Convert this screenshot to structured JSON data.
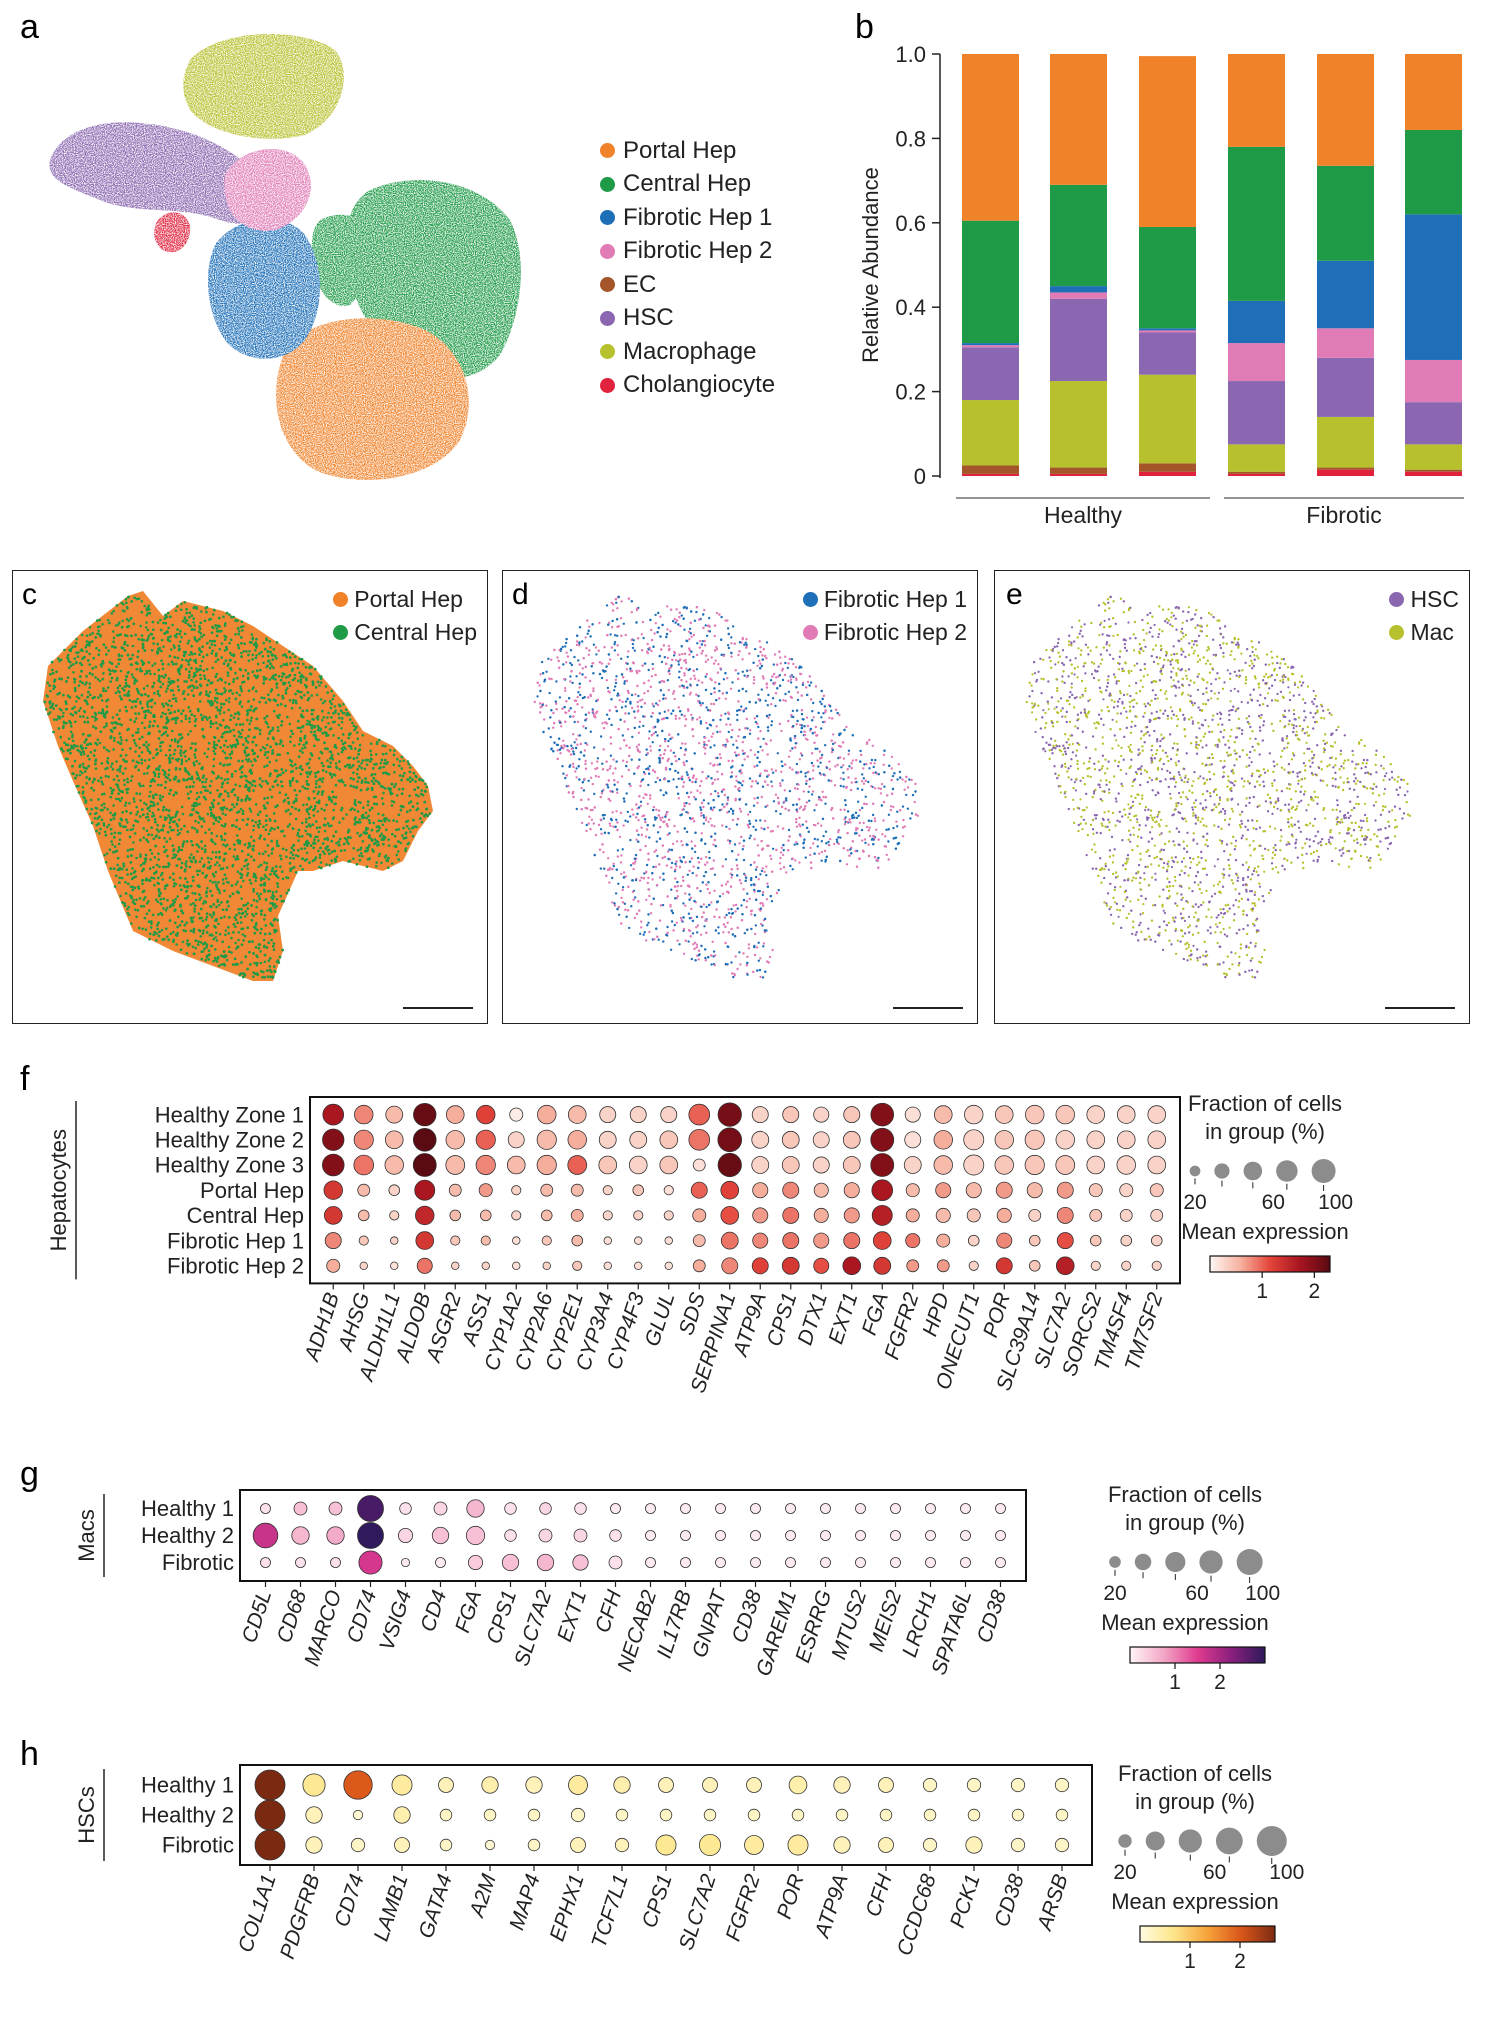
{
  "panels": {
    "a": {
      "letter": "a"
    },
    "b": {
      "letter": "b"
    },
    "c": {
      "letter": "c"
    },
    "d": {
      "letter": "d"
    },
    "e": {
      "letter": "e"
    },
    "f": {
      "letter": "f"
    },
    "g": {
      "letter": "g"
    },
    "h": {
      "letter": "h"
    }
  },
  "colors": {
    "portal_hep": "#f0822a",
    "central_hep": "#1f9a46",
    "fibrotic_hep_1": "#1f6fb8",
    "fibrotic_hep_2": "#e07bb6",
    "ec": "#a4552a",
    "hsc": "#8a67b0",
    "macrophage": "#b7c02d",
    "cholangiocyte": "#e0223c"
  },
  "umap_legend": [
    {
      "label": "Portal Hep",
      "color": "#f0822a"
    },
    {
      "label": "Central Hep",
      "color": "#1f9a46"
    },
    {
      "label": "Fibrotic Hep 1",
      "color": "#1f6fb8"
    },
    {
      "label": "Fibrotic Hep 2",
      "color": "#e07bb6"
    },
    {
      "label": "EC",
      "color": "#a4552a"
    },
    {
      "label": "HSC",
      "color": "#8a67b0"
    },
    {
      "label": "Macrophage",
      "color": "#b7c02d"
    },
    {
      "label": "Cholangiocyte",
      "color": "#e0223c"
    }
  ],
  "spatial_legends": {
    "c": [
      {
        "label": "Portal Hep",
        "color": "#f0822a"
      },
      {
        "label": "Central Hep",
        "color": "#1f9a46"
      }
    ],
    "d": [
      {
        "label": "Fibrotic Hep 1",
        "color": "#1f6fb8"
      },
      {
        "label": "Fibrotic Hep 2",
        "color": "#e07bb6"
      }
    ],
    "e": [
      {
        "label": "HSC",
        "color": "#8a67b0"
      },
      {
        "label": "Mac",
        "color": "#b7c02d"
      }
    ]
  },
  "chart_data": [
    {
      "type": "bar",
      "stacked": true,
      "panel": "b",
      "ylabel": "Relative Abundance",
      "ylim": [
        0,
        1.0
      ],
      "yticks": [
        "0",
        "0.2",
        "0.4",
        "0.6",
        "0.8",
        "1.0"
      ],
      "groups": [
        {
          "label": "Healthy",
          "bars": [
            0,
            1,
            2
          ]
        },
        {
          "label": "Fibrotic",
          "bars": [
            3,
            4,
            5
          ]
        }
      ],
      "series": [
        {
          "key": "cholangiocyte",
          "color": "#e0223c",
          "values": [
            0.005,
            0.005,
            0.01,
            0.005,
            0.015,
            0.01
          ]
        },
        {
          "key": "ec",
          "color": "#a4552a",
          "values": [
            0.02,
            0.015,
            0.02,
            0.005,
            0.005,
            0.005
          ]
        },
        {
          "key": "macrophage",
          "color": "#b7c02d",
          "values": [
            0.155,
            0.205,
            0.21,
            0.065,
            0.12,
            0.06
          ]
        },
        {
          "key": "hsc",
          "color": "#8a67b0",
          "values": [
            0.125,
            0.195,
            0.1,
            0.15,
            0.14,
            0.1
          ]
        },
        {
          "key": "fibrotic_hep_2",
          "color": "#e07bb6",
          "values": [
            0.005,
            0.015,
            0.005,
            0.09,
            0.07,
            0.1
          ]
        },
        {
          "key": "fibrotic_hep_1",
          "color": "#1f6fb8",
          "values": [
            0.005,
            0.015,
            0.005,
            0.1,
            0.16,
            0.345
          ]
        },
        {
          "key": "central_hep",
          "color": "#1f9a46",
          "values": [
            0.29,
            0.24,
            0.24,
            0.365,
            0.225,
            0.2
          ]
        },
        {
          "key": "portal_hep",
          "color": "#f0822a",
          "values": [
            0.395,
            0.31,
            0.405,
            0.22,
            0.265,
            0.18
          ]
        }
      ]
    },
    {
      "type": "scatter",
      "panel": "f",
      "rows": [
        "Healthy Zone 1",
        "Healthy Zone 2",
        "Healthy Zone 3",
        "Portal Hep",
        "Central Hep",
        "Fibrotic Hep 1",
        "Fibrotic Hep 2"
      ],
      "row_group_label": "Hepatocytes",
      "genes": [
        "ADH1B",
        "AHSG",
        "ALDH1L1",
        "ALDOB",
        "ASGR2",
        "ASS1",
        "CYP1A2",
        "CYP2A6",
        "CYP2E1",
        "CYP3A4",
        "CYP4F3",
        "GLUL",
        "SDS",
        "SERPINA1",
        "ATP9A",
        "CPS1",
        "DTX1",
        "EXT1",
        "FGA",
        "FGFR2",
        "HPD",
        "ONECUT1",
        "POR",
        "SLC39A14",
        "SLC7A2",
        "SORCS2",
        "TM4SF4",
        "TM7SF2"
      ],
      "size": [
        [
          75,
          60,
          50,
          88,
          55,
          60,
          30,
          60,
          55,
          45,
          45,
          45,
          75,
          95,
          45,
          45,
          40,
          45,
          90,
          40,
          55,
          60,
          55,
          60,
          60,
          55,
          55,
          55
        ],
        [
          80,
          65,
          55,
          90,
          60,
          65,
          45,
          65,
          60,
          50,
          50,
          55,
          75,
          98,
          50,
          50,
          45,
          50,
          92,
          45,
          60,
          70,
          60,
          65,
          60,
          55,
          55,
          55
        ],
        [
          82,
          68,
          60,
          92,
          62,
          65,
          55,
          65,
          62,
          55,
          55,
          55,
          25,
          95,
          50,
          50,
          45,
          50,
          92,
          50,
          60,
          70,
          60,
          65,
          62,
          55,
          60,
          55
        ],
        [
          60,
          25,
          20,
          70,
          25,
          30,
          15,
          25,
          25,
          15,
          20,
          15,
          45,
          55,
          40,
          45,
          35,
          40,
          75,
          30,
          40,
          40,
          45,
          40,
          45,
          30,
          30,
          30
        ],
        [
          55,
          20,
          15,
          60,
          20,
          20,
          15,
          20,
          25,
          15,
          15,
          15,
          30,
          55,
          40,
          45,
          35,
          40,
          70,
          30,
          35,
          30,
          35,
          25,
          45,
          25,
          25,
          25
        ],
        [
          45,
          15,
          10,
          55,
          15,
          15,
          10,
          15,
          20,
          10,
          10,
          10,
          25,
          50,
          40,
          45,
          40,
          45,
          55,
          35,
          30,
          20,
          40,
          20,
          45,
          20,
          20,
          20
        ],
        [
          30,
          10,
          10,
          40,
          10,
          10,
          10,
          10,
          15,
          10,
          10,
          10,
          25,
          45,
          45,
          50,
          40,
          55,
          50,
          25,
          25,
          15,
          45,
          20,
          55,
          15,
          15,
          15
        ]
      ],
      "expression": [
        [
          1.7,
          0.8,
          0.5,
          2.2,
          0.6,
          1.2,
          0.1,
          0.6,
          0.5,
          0.3,
          0.3,
          0.3,
          1.0,
          2.1,
          0.3,
          0.4,
          0.3,
          0.4,
          2.0,
          0.2,
          0.5,
          0.3,
          0.4,
          0.4,
          0.4,
          0.3,
          0.3,
          0.3
        ],
        [
          2.0,
          0.8,
          0.5,
          2.3,
          0.5,
          1.0,
          0.3,
          0.5,
          0.6,
          0.3,
          0.3,
          0.4,
          0.9,
          2.1,
          0.3,
          0.4,
          0.3,
          0.4,
          2.0,
          0.2,
          0.6,
          0.3,
          0.4,
          0.4,
          0.3,
          0.3,
          0.3,
          0.3
        ],
        [
          2.0,
          0.9,
          0.5,
          2.3,
          0.5,
          0.8,
          0.5,
          0.6,
          1.0,
          0.4,
          0.3,
          0.4,
          0.2,
          2.2,
          0.3,
          0.4,
          0.3,
          0.4,
          2.0,
          0.3,
          0.5,
          0.3,
          0.4,
          0.4,
          0.4,
          0.3,
          0.3,
          0.3
        ],
        [
          1.3,
          0.5,
          0.3,
          1.7,
          0.5,
          0.7,
          0.3,
          0.5,
          0.5,
          0.3,
          0.4,
          0.2,
          1.0,
          1.2,
          0.6,
          0.8,
          0.5,
          0.6,
          1.7,
          0.5,
          0.7,
          0.5,
          0.7,
          0.5,
          0.7,
          0.4,
          0.3,
          0.4
        ],
        [
          1.3,
          0.5,
          0.3,
          1.5,
          0.5,
          0.5,
          0.3,
          0.5,
          0.6,
          0.3,
          0.3,
          0.3,
          0.6,
          1.1,
          0.7,
          0.9,
          0.6,
          0.7,
          1.6,
          0.6,
          0.5,
          0.4,
          0.6,
          0.3,
          0.8,
          0.4,
          0.3,
          0.3
        ],
        [
          0.8,
          0.4,
          0.3,
          1.3,
          0.4,
          0.5,
          0.2,
          0.4,
          0.5,
          0.2,
          0.2,
          0.2,
          0.5,
          0.9,
          0.8,
          0.9,
          0.7,
          0.9,
          1.2,
          0.9,
          0.6,
          0.3,
          0.8,
          0.4,
          1.1,
          0.4,
          0.3,
          0.3
        ],
        [
          0.6,
          0.3,
          0.2,
          0.9,
          0.3,
          0.3,
          0.2,
          0.3,
          0.4,
          0.2,
          0.2,
          0.2,
          0.6,
          0.8,
          1.2,
          1.3,
          1.1,
          1.7,
          1.3,
          0.7,
          0.7,
          0.3,
          1.3,
          0.4,
          1.6,
          0.3,
          0.3,
          0.3
        ]
      ],
      "colorbar_ticks": [
        "1",
        "2"
      ],
      "vmax": 2.3,
      "cmap": [
        "#fff7f3",
        "#f6b2a0",
        "#e4443a",
        "#a81520",
        "#5a0a12"
      ]
    },
    {
      "type": "scatter",
      "panel": "g",
      "rows": [
        "Healthy 1",
        "Healthy 2",
        "Fibrotic"
      ],
      "row_group_label": "Macs",
      "genes": [
        "CD5L",
        "CD68",
        "MARCO",
        "CD74",
        "VSIG4",
        "CD4",
        "FGA",
        "CPS1",
        "SLC7A2",
        "EXT1",
        "CFH",
        "NECAB2",
        "IL17RB",
        "GNPAT",
        "CD38",
        "GAREM1",
        "ESRRG",
        "MTUS2",
        "MEIS2",
        "LRCH1",
        "SPATA6L",
        "CD38"
      ],
      "size": [
        [
          15,
          25,
          25,
          100,
          20,
          25,
          45,
          20,
          20,
          20,
          15,
          15,
          15,
          15,
          15,
          15,
          15,
          15,
          15,
          15,
          15,
          15
        ],
        [
          90,
          45,
          45,
          100,
          30,
          40,
          50,
          20,
          25,
          25,
          20,
          15,
          15,
          15,
          15,
          15,
          15,
          15,
          15,
          15,
          15,
          15
        ],
        [
          15,
          15,
          15,
          80,
          10,
          15,
          30,
          40,
          40,
          35,
          25,
          15,
          15,
          15,
          15,
          15,
          15,
          15,
          15,
          15,
          15,
          15
        ]
      ],
      "expression": [
        [
          0.2,
          0.5,
          0.5,
          2.8,
          0.2,
          0.3,
          0.6,
          0.2,
          0.3,
          0.2,
          0.1,
          0.1,
          0.1,
          0.1,
          0.1,
          0.1,
          0.1,
          0.1,
          0.1,
          0.1,
          0.1,
          0.1
        ],
        [
          1.7,
          0.6,
          0.7,
          3.0,
          0.3,
          0.5,
          0.5,
          0.2,
          0.3,
          0.3,
          0.2,
          0.1,
          0.1,
          0.1,
          0.1,
          0.1,
          0.1,
          0.1,
          0.1,
          0.1,
          0.1,
          0.1
        ],
        [
          0.2,
          0.2,
          0.2,
          1.6,
          0.1,
          0.1,
          0.4,
          0.5,
          0.6,
          0.5,
          0.2,
          0.1,
          0.1,
          0.1,
          0.1,
          0.1,
          0.1,
          0.1,
          0.1,
          0.1,
          0.1,
          0.1
        ]
      ],
      "colorbar_ticks": [
        "1",
        "2"
      ],
      "vmax": 3.0,
      "cmap": [
        "#fff5f8",
        "#f3a6c6",
        "#df3b8f",
        "#8a1f7c",
        "#2e1a5c"
      ]
    },
    {
      "type": "scatter",
      "panel": "h",
      "rows": [
        "Healthy 1",
        "Healthy 2",
        "Fibrotic"
      ],
      "row_group_label": "HSCs",
      "genes": [
        "COL1A1",
        "PDGFRB",
        "CD74",
        "LAMB1",
        "GATA4",
        "A2M",
        "MAP4",
        "EPHX1",
        "TCF7L1",
        "CPS1",
        "SLC7A2",
        "FGFR2",
        "POR",
        "ATP9A",
        "CFH",
        "CCDC68",
        "PCK1",
        "CD38",
        "ARSB"
      ],
      "size": [
        [
          100,
          55,
          90,
          45,
          25,
          30,
          30,
          40,
          30,
          25,
          25,
          25,
          35,
          30,
          25,
          20,
          20,
          20,
          20
        ],
        [
          100,
          30,
          10,
          30,
          15,
          15,
          15,
          20,
          15,
          15,
          15,
          15,
          15,
          15,
          15,
          15,
          15,
          15,
          15
        ],
        [
          100,
          30,
          20,
          25,
          15,
          10,
          15,
          25,
          20,
          45,
          50,
          40,
          45,
          30,
          25,
          20,
          30,
          20,
          20
        ]
      ],
      "expression": [
        [
          2.7,
          0.6,
          2.0,
          0.5,
          0.3,
          0.4,
          0.3,
          0.5,
          0.4,
          0.3,
          0.3,
          0.3,
          0.4,
          0.3,
          0.3,
          0.2,
          0.2,
          0.2,
          0.2
        ],
        [
          2.7,
          0.3,
          0.1,
          0.4,
          0.2,
          0.2,
          0.2,
          0.2,
          0.2,
          0.2,
          0.2,
          0.2,
          0.2,
          0.2,
          0.2,
          0.2,
          0.2,
          0.2,
          0.2
        ],
        [
          2.7,
          0.3,
          0.2,
          0.3,
          0.2,
          0.1,
          0.2,
          0.3,
          0.3,
          0.6,
          0.6,
          0.5,
          0.5,
          0.3,
          0.3,
          0.2,
          0.3,
          0.2,
          0.2
        ]
      ],
      "colorbar_ticks": [
        "1",
        "2"
      ],
      "vmax": 2.7,
      "cmap": [
        "#fffbe0",
        "#fde68a",
        "#f6a23a",
        "#d9561a",
        "#7b2a12"
      ]
    }
  ],
  "size_legends": {
    "f": {
      "title_line1": "Fraction of cells",
      "title_line2": "in group (%)",
      "labels": [
        "20",
        "60",
        "100"
      ],
      "mean_label": "Mean expression"
    },
    "g": {
      "title_line1": "Fraction of cells",
      "title_line2": "in group (%)",
      "labels": [
        "20",
        "60",
        "100"
      ],
      "mean_label": "Mean expression"
    },
    "h": {
      "title_line1": "Fraction of cells",
      "title_line2": "in group (%)",
      "labels": [
        "20",
        "60",
        "100"
      ],
      "mean_label": "Mean expression"
    }
  }
}
